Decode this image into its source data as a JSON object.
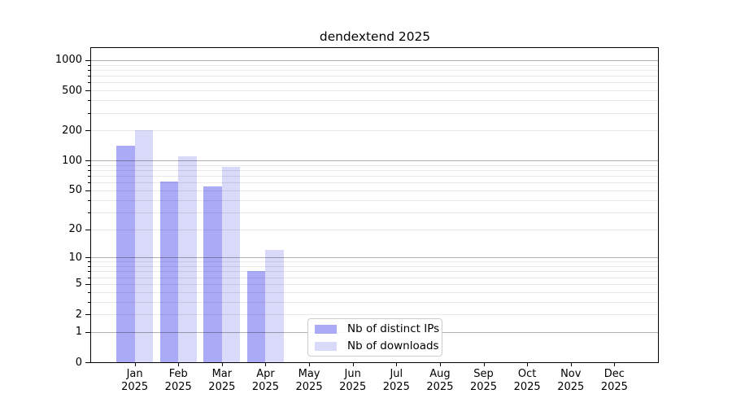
{
  "figure": {
    "background": "#ffffff"
  },
  "colors": {
    "bar_distinct_ips": "#aaaaf7",
    "bar_downloads": "#d9d9f9",
    "grid_major": "#b0b0b0",
    "grid_minor": "#ebebeb",
    "axis_border": "#000000",
    "legend_border": "#cccccc",
    "text": "#000000"
  },
  "chart_data": {
    "type": "bar",
    "title": "dendextend 2025",
    "xlabel": "",
    "ylabel": "",
    "yscale": "log1p",
    "ylim": [
      0,
      1300
    ],
    "yticks": [
      0,
      1,
      2,
      5,
      10,
      20,
      50,
      100,
      200,
      500,
      1000
    ],
    "grid": "horizontal",
    "categories": [
      {
        "month": "Jan",
        "year": "2025"
      },
      {
        "month": "Feb",
        "year": "2025"
      },
      {
        "month": "Mar",
        "year": "2025"
      },
      {
        "month": "Apr",
        "year": "2025"
      },
      {
        "month": "May",
        "year": "2025"
      },
      {
        "month": "Jun",
        "year": "2025"
      },
      {
        "month": "Jul",
        "year": "2025"
      },
      {
        "month": "Aug",
        "year": "2025"
      },
      {
        "month": "Sep",
        "year": "2025"
      },
      {
        "month": "Oct",
        "year": "2025"
      },
      {
        "month": "Nov",
        "year": "2025"
      },
      {
        "month": "Dec",
        "year": "2025"
      }
    ],
    "series": [
      {
        "name": "Nb of distinct IPs",
        "color": "#aaaaf7",
        "values": [
          140,
          62,
          55,
          7,
          0,
          0,
          0,
          0,
          0,
          0,
          0,
          0
        ]
      },
      {
        "name": "Nb of downloads",
        "color": "#d9d9f9",
        "values": [
          200,
          111,
          87,
          12,
          0,
          0,
          0,
          0,
          0,
          0,
          0,
          0
        ]
      }
    ],
    "legend": {
      "position": "inside-bottom-center",
      "entries": [
        "Nb of distinct IPs",
        "Nb of downloads"
      ]
    }
  }
}
